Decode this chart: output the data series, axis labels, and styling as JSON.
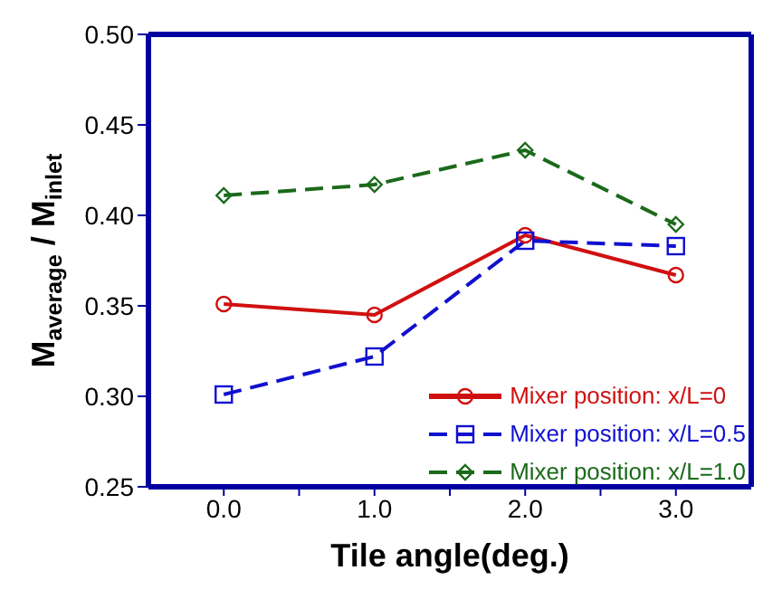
{
  "chart_data": {
    "type": "line",
    "xlabel": "Tile angle(deg.)",
    "ylabel": "M$_{average}$ / M$_{inlet}$",
    "x": [
      0,
      1,
      2,
      3
    ],
    "xlim": [
      -0.5,
      3.5
    ],
    "xticks": [
      {
        "value": 0,
        "label": "0.0"
      },
      {
        "value": 0.5,
        "label": null
      },
      {
        "value": 1,
        "label": "1.0"
      },
      {
        "value": 1.5,
        "label": null
      },
      {
        "value": 2,
        "label": "2.0"
      },
      {
        "value": 2.5,
        "label": null
      },
      {
        "value": 3,
        "label": "3.0"
      }
    ],
    "ylim": [
      0.25,
      0.5
    ],
    "yticks": [
      {
        "value": 0.25,
        "label": "0.25"
      },
      {
        "value": 0.3,
        "label": "0.30"
      },
      {
        "value": 0.35,
        "label": "0.35"
      },
      {
        "value": 0.4,
        "label": "0.40"
      },
      {
        "value": 0.45,
        "label": "0.45"
      },
      {
        "value": 0.5,
        "label": "0.50"
      }
    ],
    "grid": false,
    "legend": "bottom right",
    "series": [
      {
        "name": "Mixer position: x/L=0",
        "color": "#d01010",
        "values": [
          0.351,
          0.345,
          0.389,
          0.367
        ],
        "marker": "circle",
        "line_style": "solid"
      },
      {
        "name": "Mixer position: x/L=0.5",
        "color": "#1010d0",
        "values": [
          0.301,
          0.322,
          0.386,
          0.383
        ],
        "marker": "square",
        "line_style": "dashed"
      },
      {
        "name": "Mixer position: x/L=1.0",
        "color": "#1a6a1a",
        "values": [
          0.411,
          0.417,
          0.436,
          0.395
        ],
        "marker": "diamond",
        "line_style": "dashed"
      }
    ]
  }
}
